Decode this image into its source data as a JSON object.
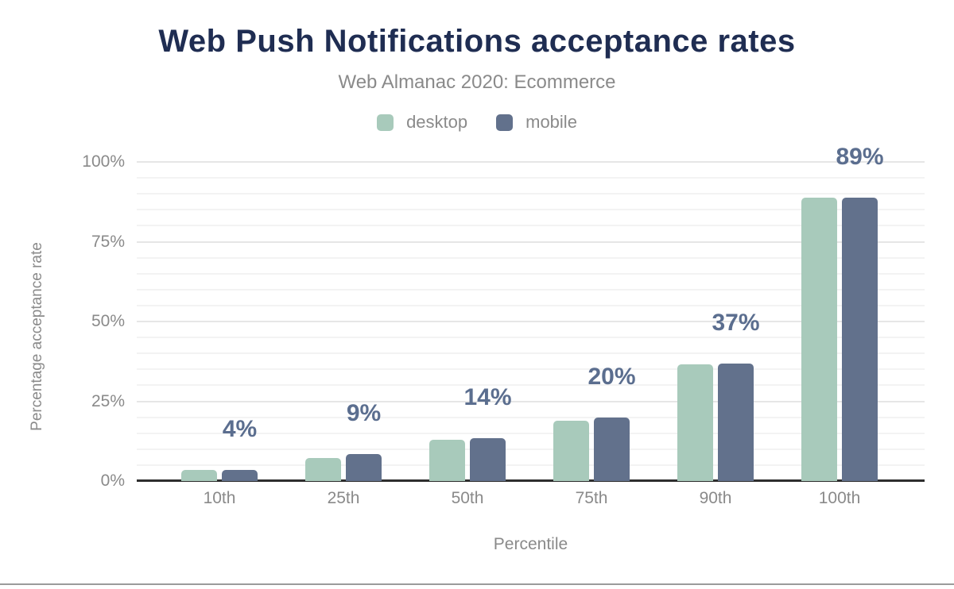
{
  "chart": {
    "title": "Web Push Notifications acceptance rates",
    "subtitle": "Web Almanac 2020: Ecommerce"
  },
  "chart_data": {
    "type": "bar",
    "title": "Web Push Notifications acceptance rates",
    "subtitle": "Web Almanac 2020: Ecommerce",
    "categories": [
      "10th",
      "25th",
      "50th",
      "75th",
      "90th",
      "100th"
    ],
    "series": [
      {
        "name": "desktop",
        "color": "#a8cabb",
        "values": [
          3.5,
          7.3,
          13.0,
          19.0,
          36.5,
          88.8
        ]
      },
      {
        "name": "mobile",
        "color": "#62718c",
        "values": [
          3.6,
          8.5,
          13.5,
          19.8,
          36.8,
          88.9
        ]
      }
    ],
    "bar_labels": [
      "4%",
      "9%",
      "14%",
      "20%",
      "37%",
      "89%"
    ],
    "bar_labels_anchor": "mobile",
    "xlabel": "Percentile",
    "ylabel": "Percentage acceptance rate",
    "ylim": [
      0,
      100
    ],
    "yticks": [
      0,
      25,
      50,
      75,
      100
    ],
    "ytick_labels": [
      "0%",
      "25%",
      "50%",
      "75%",
      "100%"
    ],
    "minor_grid_step": 5,
    "major_grid_step": 25,
    "grid": true,
    "legend_position": "top",
    "colors": {
      "title": "#1f2d52",
      "value_label": "#5b6e8f",
      "axis_text": "#8a8a8a",
      "axis_line": "#2e2e2e",
      "minor_grid": "#f3f3f3",
      "major_grid": "#e6e6e6"
    }
  }
}
